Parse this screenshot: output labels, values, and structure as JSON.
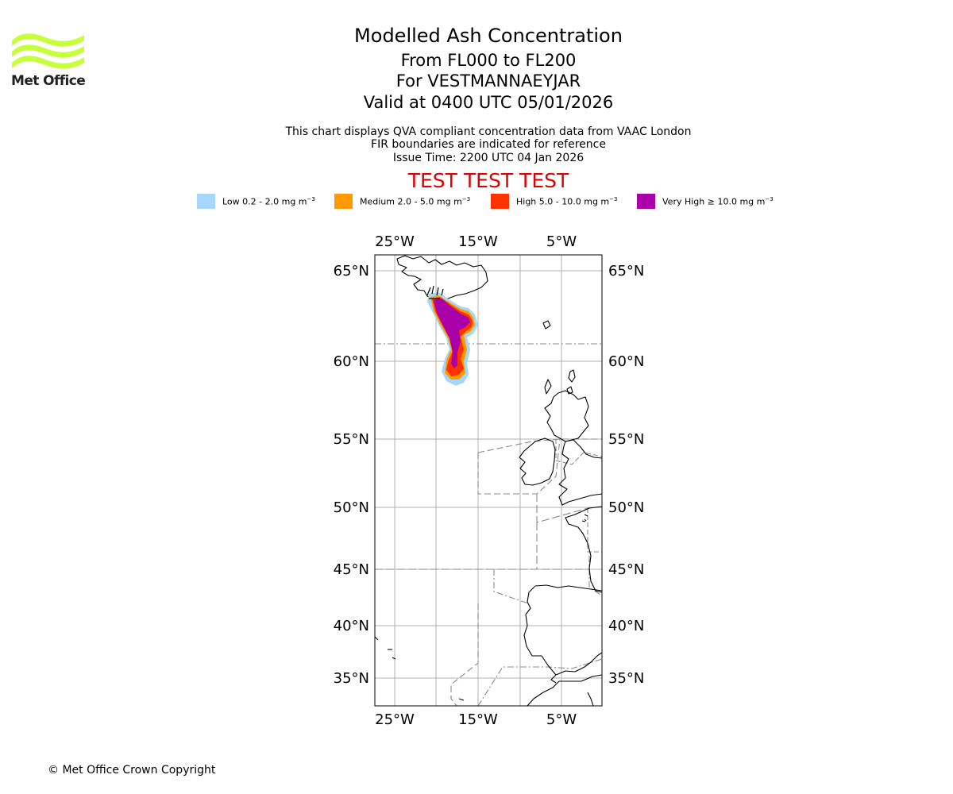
{
  "brand": {
    "name": "Met Office",
    "logo_color": "#c8ff3c"
  },
  "header": {
    "title": "Modelled Ash Concentration",
    "levels": "From FL000 to FL200",
    "volcano": "For VESTMANNAEYJAR",
    "valid": "Valid at 0400 UTC 05/01/2026",
    "note1": "This chart displays QVA compliant concentration data from VAAC London",
    "note2": "FIR boundaries are indicated for reference",
    "issue": "Issue Time: 2200 UTC 04 Jan 2026",
    "test_banner": "TEST TEST TEST",
    "test_color": "#e00000"
  },
  "legend": [
    {
      "label": "Low 0.2 - 2.0 mg m",
      "exp": "−3",
      "color": "#a5d7fa"
    },
    {
      "label": "Medium 2.0 - 5.0 mg m",
      "exp": "−3",
      "color": "#ff9a00"
    },
    {
      "label": "High 5.0 - 10.0 mg m",
      "exp": "−3",
      "color": "#ff3300"
    },
    {
      "label": "Very High  ≥  10.0 mg m",
      "exp": "−3",
      "color": "#aa00aa"
    }
  ],
  "map": {
    "lon_ticks": [
      "25°W",
      "15°W",
      "5°W"
    ],
    "lat_ticks": [
      "65°N",
      "60°N",
      "55°N",
      "50°N",
      "45°N",
      "40°N",
      "35°N"
    ]
  },
  "footer": {
    "copyright": "© Met Office Crown Copyright"
  }
}
